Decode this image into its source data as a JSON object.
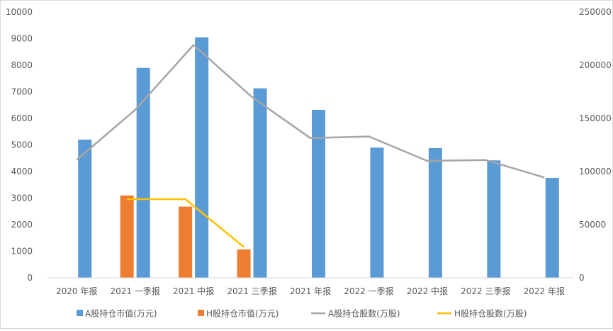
{
  "chart_data": {
    "type": "bar",
    "categories": [
      "2020 年报",
      "2021 一季报",
      "2021 中报",
      "2021 三季报",
      "2021 年报",
      "2022 一季报",
      "2022 中报",
      "2022 三季报",
      "2022 年报"
    ],
    "series": [
      {
        "name": "A股持仓市值(万元)",
        "type": "bar",
        "axis": "left",
        "color": "#5b9bd5",
        "values": [
          5200,
          7900,
          9050,
          7130,
          6320,
          4900,
          4880,
          4420,
          3760
        ]
      },
      {
        "name": "H股持仓市值(万元)",
        "type": "bar",
        "axis": "left",
        "color": "#ed7d31",
        "values": [
          null,
          3100,
          2680,
          1070,
          null,
          null,
          null,
          null,
          null
        ]
      },
      {
        "name": "A股持仓股数(万股)",
        "type": "line",
        "axis": "right",
        "color": "#a5a5a5",
        "values": [
          111000,
          158000,
          219000,
          170000,
          131500,
          133000,
          110000,
          110800,
          94500
        ]
      },
      {
        "name": "H股持仓股数(万股)",
        "type": "line",
        "axis": "right",
        "color": "#ffc000",
        "values": [
          null,
          74000,
          74000,
          29000,
          null,
          null,
          null,
          null,
          null
        ]
      }
    ],
    "y_left": {
      "range": [
        0,
        10000
      ],
      "ticks": [
        "0",
        "1000",
        "2000",
        "3000",
        "4000",
        "5000",
        "6000",
        "7000",
        "8000",
        "9000",
        "10000"
      ]
    },
    "y_right": {
      "range": [
        0,
        250000
      ],
      "ticks": [
        "0",
        "50000",
        "100000",
        "150000",
        "200000",
        "250000"
      ]
    },
    "grid": false,
    "legend": "bottom"
  }
}
